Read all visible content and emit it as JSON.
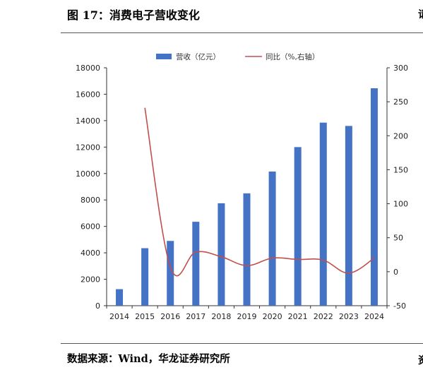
{
  "header": {
    "title": "图 17：消费电子营收变化",
    "edge_glyph_top": "请",
    "edge_glyph_bottom": "资"
  },
  "footer": {
    "source": "数据来源：Wind，华龙证券研究所"
  },
  "colors": {
    "bar": "#4472C4",
    "line": "#C0504D",
    "axis": "#333333"
  },
  "chart_data": {
    "type": "bar",
    "categories": [
      "2014",
      "2015",
      "2016",
      "2017",
      "2018",
      "2019",
      "2020",
      "2021",
      "2022",
      "2023",
      "2024"
    ],
    "series": [
      {
        "name": "营收（亿元）",
        "type": "bar",
        "axis": "left",
        "values": [
          1250,
          4350,
          4900,
          6350,
          7750,
          8500,
          10150,
          12000,
          13850,
          13600,
          16450
        ]
      },
      {
        "name": "同比（%,右轴）",
        "type": "line",
        "axis": "right",
        "values": [
          null,
          241,
          7,
          29,
          22,
          9,
          20,
          18,
          17,
          -2,
          20
        ]
      }
    ],
    "ylim_left": [
      0,
      18000
    ],
    "ylim_right": [
      -50,
      300
    ],
    "yticks_left": [
      "0",
      "2000",
      "4000",
      "6000",
      "8000",
      "10000",
      "12000",
      "14000",
      "16000",
      "18000"
    ],
    "yticks_right": [
      "-50",
      "0",
      "50",
      "100",
      "150",
      "200",
      "250",
      "300"
    ],
    "grid": false,
    "legend_position": "top"
  }
}
